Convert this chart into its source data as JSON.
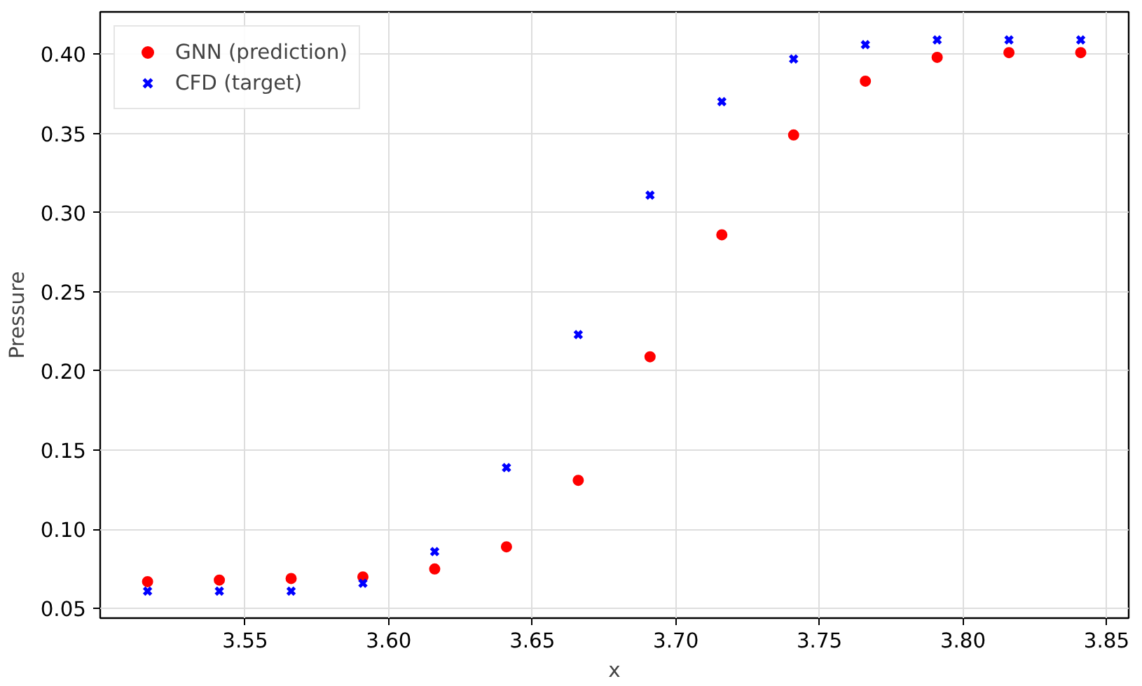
{
  "chart_data": {
    "type": "scatter",
    "xlabel": "x",
    "ylabel": "Pressure",
    "x": [
      3.516,
      3.541,
      3.566,
      3.591,
      3.616,
      3.641,
      3.666,
      3.691,
      3.716,
      3.741,
      3.766,
      3.791,
      3.816,
      3.841
    ],
    "series": [
      {
        "name": "GNN (prediction)",
        "color": "#ff0000",
        "marker": "circle",
        "values": [
          0.067,
          0.068,
          0.069,
          0.07,
          0.075,
          0.089,
          0.131,
          0.209,
          0.286,
          0.349,
          0.383,
          0.398,
          0.401,
          0.401
        ]
      },
      {
        "name": "CFD (target)",
        "color": "#0000ff",
        "marker": "cross",
        "values": [
          0.061,
          0.061,
          0.061,
          0.066,
          0.086,
          0.139,
          0.223,
          0.311,
          0.37,
          0.397,
          0.406,
          0.409,
          0.409,
          0.409
        ]
      }
    ],
    "xlim": [
      3.4995,
      3.8577
    ],
    "ylim": [
      0.044,
      0.4267
    ],
    "xticks": [
      3.55,
      {
        "value": 3.6,
        "label": "3.60"
      },
      3.65,
      {
        "value": 3.7,
        "label": "3.70"
      },
      3.75,
      {
        "value": 3.8,
        "label": "3.80"
      },
      3.85
    ],
    "yticks": [
      0.05,
      {
        "value": 0.1,
        "label": "0.10"
      },
      0.15,
      {
        "value": 0.2,
        "label": "0.20"
      },
      0.25,
      {
        "value": 0.3,
        "label": "0.30"
      },
      0.35,
      {
        "value": 0.4,
        "label": "0.40"
      }
    ],
    "grid": true,
    "legend": "top left"
  }
}
